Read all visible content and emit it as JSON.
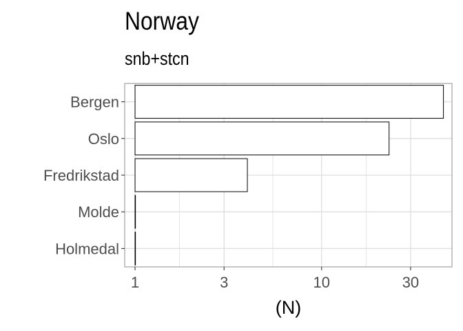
{
  "chart_data": {
    "type": "bar",
    "orientation": "horizontal",
    "title": "Norway",
    "subtitle": "snb+stcn",
    "xlabel": "(N)",
    "ylabel": "",
    "x_scale": "log10",
    "xlim": [
      0.88,
      50
    ],
    "x_ticks": [
      1,
      3,
      10,
      30
    ],
    "x_tick_labels": [
      "1",
      "3",
      "10",
      "30"
    ],
    "categories": [
      "Bergen",
      "Oslo",
      "Fredrikstad",
      "Molde",
      "Holmedal"
    ],
    "values": [
      45,
      23,
      4,
      1,
      1
    ],
    "grid": true,
    "bar_fill": "#ffffff",
    "bar_stroke": "#000000",
    "grid_color": "#dedede",
    "panel_border_color": "#b3b3b3",
    "text_color": "#4d4d4d"
  }
}
